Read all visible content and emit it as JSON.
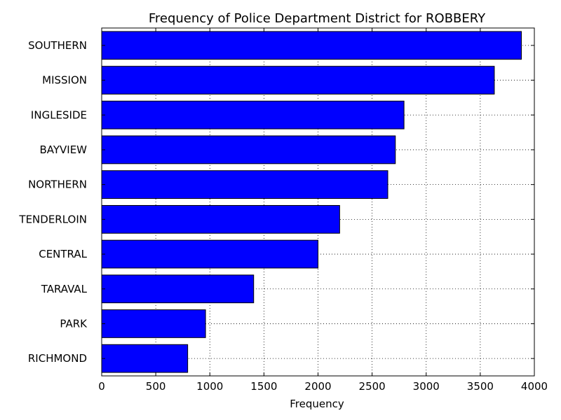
{
  "chart_data": {
    "type": "bar",
    "orientation": "horizontal",
    "title": "Frequency of Police Department District for ROBBERY",
    "xlabel": "Frequency",
    "ylabel": "",
    "xlim": [
      0,
      4000
    ],
    "xticks": [
      0,
      500,
      1000,
      1500,
      2000,
      2500,
      3000,
      3500,
      4000
    ],
    "grid": true,
    "categories": [
      "SOUTHERN",
      "MISSION",
      "INGLESIDE",
      "BAYVIEW",
      "NORTHERN",
      "TENDERLOIN",
      "CENTRAL",
      "TARAVAL",
      "PARK",
      "RICHMOND"
    ],
    "values": [
      3880,
      3630,
      2795,
      2715,
      2645,
      2200,
      2000,
      1405,
      960,
      795
    ],
    "bar_color": "#0000ff",
    "edge_color": "#000000"
  }
}
